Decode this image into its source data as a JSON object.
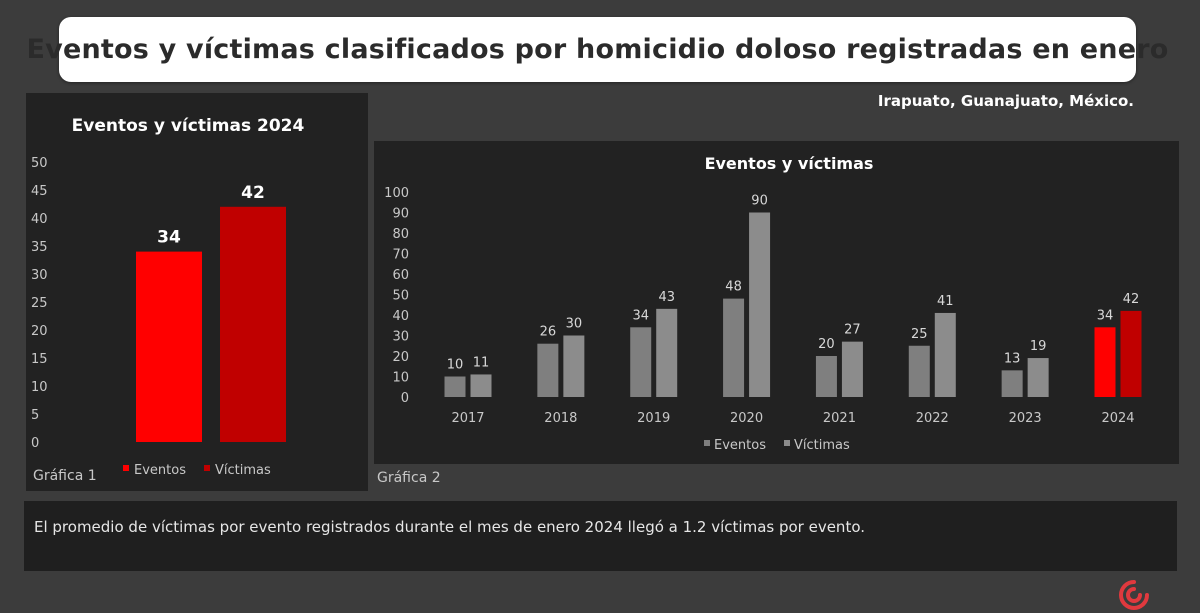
{
  "header": {
    "title": "Eventos y víctimas clasificados por homicidio doloso registradas en enero",
    "location": "Irapuato, Guanajuato, México."
  },
  "colors": {
    "eventos_2024": "#ff0000",
    "victimas_2024": "#c00000",
    "eventos": "#7f7f7f",
    "victimas": "#8c8c8c",
    "panel_bg": "#222222",
    "page_bg": "#3c3c3c"
  },
  "captions": {
    "chart1": "Gráfica 1",
    "chart2": "Gráfica 2"
  },
  "note": {
    "text": "El promedio de víctimas por evento registrados durante el mes de enero 2024 llegó a 1.2 víctimas por evento."
  },
  "logo": {
    "icon": "brand-swirl-icon",
    "color": "#e0393e"
  },
  "chart_data": [
    {
      "type": "bar",
      "title": "Eventos y víctimas 2024",
      "categories": [
        "Eventos",
        "Víctimas"
      ],
      "values": [
        34,
        42
      ],
      "ylim": [
        0,
        50
      ],
      "yticks": [
        0,
        5,
        10,
        15,
        20,
        25,
        30,
        35,
        40,
        45,
        50
      ],
      "legend": [
        "Eventos",
        "Víctimas"
      ],
      "legend_position": "bottom",
      "data_labels": true,
      "grid": false
    },
    {
      "type": "bar",
      "title": "Eventos y víctimas",
      "categories": [
        "2017",
        "2018",
        "2019",
        "2020",
        "2021",
        "2022",
        "2023",
        "2024"
      ],
      "series": [
        {
          "name": "Eventos",
          "values": [
            10,
            26,
            34,
            48,
            20,
            25,
            13,
            34
          ]
        },
        {
          "name": "Víctimas",
          "values": [
            11,
            30,
            43,
            90,
            27,
            41,
            19,
            42
          ]
        }
      ],
      "ylim": [
        0,
        100
      ],
      "yticks": [
        0,
        10,
        20,
        30,
        40,
        50,
        60,
        70,
        80,
        90,
        100
      ],
      "legend_position": "bottom",
      "data_labels": true,
      "grid": false
    }
  ]
}
